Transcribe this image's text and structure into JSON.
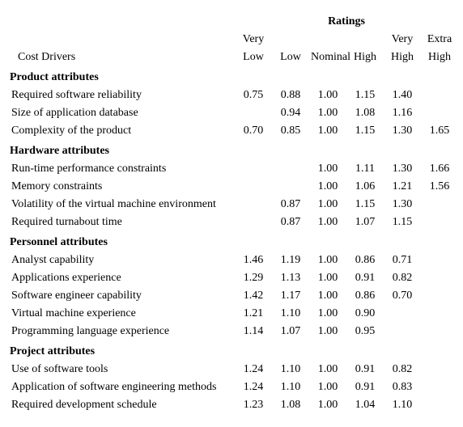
{
  "header": {
    "ratings": "Ratings",
    "costDrivers": "Cost Drivers",
    "columns": [
      "Very Low",
      "Low",
      "Nominal",
      "High",
      "Very High",
      "Extra High"
    ],
    "columnsLine1": [
      "Very",
      "",
      "",
      "",
      "Very",
      "Extra"
    ],
    "columnsLine2": [
      "Low",
      "Low",
      "Nominal",
      "High",
      "High",
      "High"
    ]
  },
  "sections": [
    {
      "title": "Product attributes",
      "rows": [
        {
          "label": "Required software reliability",
          "values": [
            "0.75",
            "0.88",
            "1.00",
            "1.15",
            "1.40",
            ""
          ]
        },
        {
          "label": "Size of application database",
          "values": [
            "",
            "0.94",
            "1.00",
            "1.08",
            "1.16",
            ""
          ]
        },
        {
          "label": "Complexity of the product",
          "values": [
            "0.70",
            "0.85",
            "1.00",
            "1.15",
            "1.30",
            "1.65"
          ]
        }
      ]
    },
    {
      "title": "Hardware attributes",
      "rows": [
        {
          "label": "Run-time performance constraints",
          "values": [
            "",
            "",
            "1.00",
            "1.11",
            "1.30",
            "1.66"
          ]
        },
        {
          "label": "Memory constraints",
          "values": [
            "",
            "",
            "1.00",
            "1.06",
            "1.21",
            "1.56"
          ]
        },
        {
          "label": "Volatility of the virtual machine environment",
          "values": [
            "",
            "0.87",
            "1.00",
            "1.15",
            "1.30",
            ""
          ]
        },
        {
          "label": "Required turnabout time",
          "values": [
            "",
            "0.87",
            "1.00",
            "1.07",
            "1.15",
            ""
          ]
        }
      ]
    },
    {
      "title": "Personnel attributes",
      "rows": [
        {
          "label": "Analyst capability",
          "values": [
            "1.46",
            "1.19",
            "1.00",
            "0.86",
            "0.71",
            ""
          ]
        },
        {
          "label": "Applications experience",
          "values": [
            "1.29",
            "1.13",
            "1.00",
            "0.91",
            "0.82",
            ""
          ]
        },
        {
          "label": "Software engineer capability",
          "values": [
            "1.42",
            "1.17",
            "1.00",
            "0.86",
            "0.70",
            ""
          ]
        },
        {
          "label": "Virtual machine experience",
          "values": [
            "1.21",
            "1.10",
            "1.00",
            "0.90",
            "",
            ""
          ]
        },
        {
          "label": "Programming language experience",
          "values": [
            "1.14",
            "1.07",
            "1.00",
            "0.95",
            "",
            ""
          ]
        }
      ]
    },
    {
      "title": "Project attributes",
      "rows": [
        {
          "label": "Use of software tools",
          "values": [
            "1.24",
            "1.10",
            "1.00",
            "0.91",
            "0.82",
            ""
          ]
        },
        {
          "label": "Application of software engineering methods",
          "values": [
            "1.24",
            "1.10",
            "1.00",
            "0.91",
            "0.83",
            ""
          ]
        },
        {
          "label": "Required development schedule",
          "values": [
            "1.23",
            "1.08",
            "1.00",
            "1.04",
            "1.10",
            ""
          ]
        }
      ]
    }
  ],
  "style": {
    "font_family": "Times New Roman",
    "font_size_pt": 11,
    "text_color": "#000000",
    "background_color": "#ffffff"
  }
}
